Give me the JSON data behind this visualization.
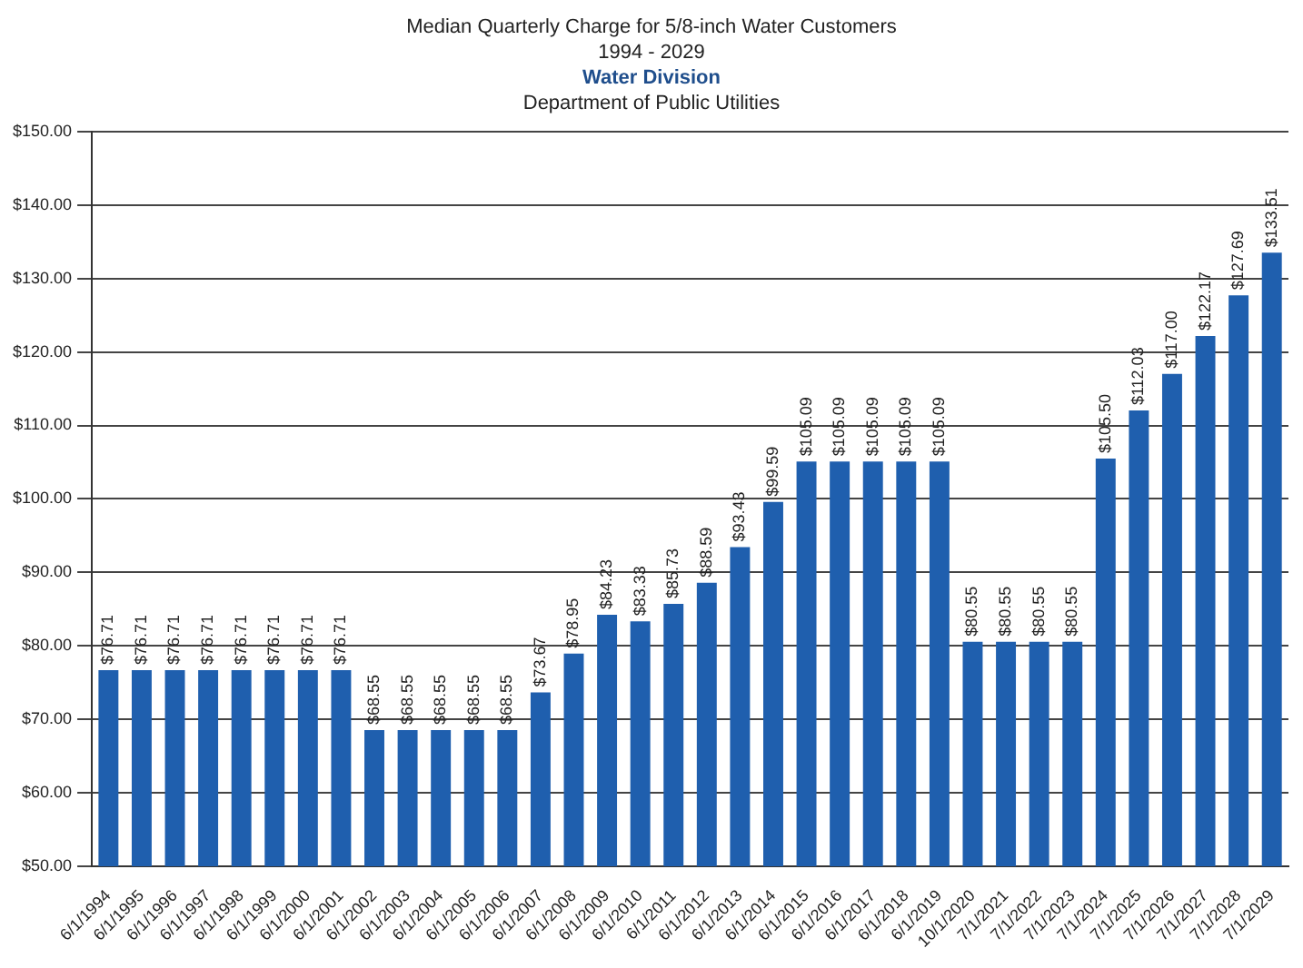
{
  "chart_data": {
    "type": "bar",
    "title": "Median Quarterly Charge for 5/8-inch Water Customers",
    "subtitle": "1994 - 2029",
    "annotations": [
      "Water Division",
      "Department of Public Utilities"
    ],
    "categories": [
      "6/1/1994",
      "6/1/1995",
      "6/1/1996",
      "6/1/1997",
      "6/1/1998",
      "6/1/1999",
      "6/1/2000",
      "6/1/2001",
      "6/1/2002",
      "6/1/2003",
      "6/1/2004",
      "6/1/2005",
      "6/1/2006",
      "6/1/2007",
      "6/1/2008",
      "6/1/2009",
      "6/1/2010",
      "6/1/2011",
      "6/1/2012",
      "6/1/2013",
      "6/1/2014",
      "6/1/2015",
      "6/1/2016",
      "6/1/2017",
      "6/1/2018",
      "6/1/2019",
      "10/1/2020",
      "7/1/2021",
      "7/1/2022",
      "7/1/2023",
      "7/1/2024",
      "7/1/2025",
      "7/1/2026",
      "7/1/2027",
      "7/1/2028",
      "7/1/2029"
    ],
    "values": [
      76.71,
      76.71,
      76.71,
      76.71,
      76.71,
      76.71,
      76.71,
      76.71,
      68.55,
      68.55,
      68.55,
      68.55,
      68.55,
      73.67,
      78.95,
      84.23,
      83.33,
      85.73,
      88.59,
      93.43,
      99.59,
      105.09,
      105.09,
      105.09,
      105.09,
      105.09,
      80.55,
      80.55,
      80.55,
      80.55,
      105.5,
      112.03,
      117.0,
      122.17,
      127.69,
      133.51
    ],
    "value_labels": [
      "$76.71",
      "$76.71",
      "$76.71",
      "$76.71",
      "$76.71",
      "$76.71",
      "$76.71",
      "$76.71",
      "$68.55",
      "$68.55",
      "$68.55",
      "$68.55",
      "$68.55",
      "$73.67",
      "$78.95",
      "$84.23",
      "$83.33",
      "$85.73",
      "$88.59",
      "$93.43",
      "$99.59",
      "$105.09",
      "$105.09",
      "$105.09",
      "$105.09",
      "$105.09",
      "$80.55",
      "$80.55",
      "$80.55",
      "$80.55",
      "$105.50",
      "$112.03",
      "$117.00",
      "$122.17",
      "$127.69",
      "$133.51"
    ],
    "color": "#1f5fae",
    "ylim": [
      50,
      150
    ],
    "yticks": [
      {
        "value": 50,
        "label": "$50.00"
      },
      {
        "value": 60,
        "label": "$60.00"
      },
      {
        "value": 70,
        "label": "$70.00"
      },
      {
        "value": 80,
        "label": "$80.00"
      },
      {
        "value": 90,
        "label": "$90.00"
      },
      {
        "value": 100,
        "label": "$100.00"
      },
      {
        "value": 110,
        "label": "$110.00"
      },
      {
        "value": 120,
        "label": "$120.00"
      },
      {
        "value": 130,
        "label": "$130.00"
      },
      {
        "value": 140,
        "label": "$140.00"
      },
      {
        "value": 150,
        "label": "$150.00"
      }
    ],
    "grid": "y",
    "legend": false
  }
}
